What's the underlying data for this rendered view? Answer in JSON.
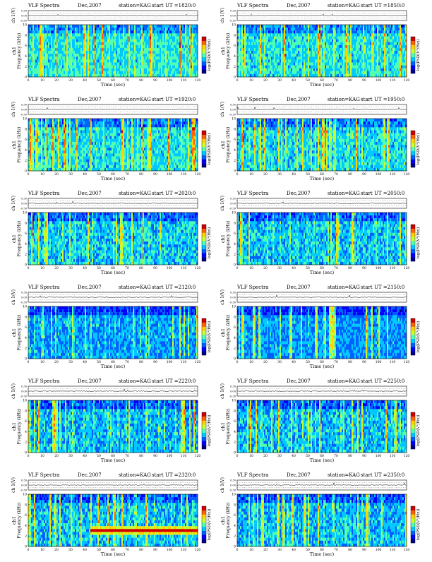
{
  "colors": {
    "colormap": [
      "#00008f",
      "#0000ff",
      "#0060ff",
      "#00c8ff",
      "#50ffb0",
      "#c8ff30",
      "#ffd000",
      "#ff6000",
      "#d00000"
    ],
    "trace": "#000000",
    "dotted_grid": "#555555"
  },
  "chart_data": [
    {
      "type": "heatmap",
      "title": "VLF Spectra",
      "date": "Dec,2007",
      "station": "station=KAG",
      "start": "start  UT  =1820:0",
      "ylabel_top": "ch 1(V)",
      "ylabel": "Frequency  (kHz)",
      "ylabel_prefix": "ch1",
      "xlabel": "Time  (sec)",
      "xlim": [
        0,
        120
      ],
      "ylim": [
        0,
        10
      ],
      "trace_ylim": [
        -0.3,
        0.3
      ],
      "xticks": [
        0,
        10,
        20,
        30,
        40,
        50,
        60,
        70,
        80,
        90,
        100,
        110,
        120
      ],
      "yticks": [
        0,
        2,
        4,
        6,
        8,
        10
      ],
      "trace_ticks": [
        "0.30",
        "0.00",
        "-0.30"
      ],
      "colorbar_label": "log(PSD(V²/Hz))",
      "colorbar_ticks": [
        "",
        ""
      ],
      "intensity": 0.75,
      "band": false
    },
    {
      "type": "heatmap",
      "title": "VLF Spectra",
      "date": "Dec,2007",
      "station": "station=KAG",
      "start": "start  UT  =1850:0",
      "ylabel_top": "ch 1(V)",
      "ylabel": "Frequency  (kHz)",
      "ylabel_prefix": "ch1",
      "xlabel": "Time  (sec)",
      "xlim": [
        0,
        120
      ],
      "ylim": [
        0,
        10
      ],
      "trace_ylim": [
        -0.3,
        0.3
      ],
      "xticks": [
        0,
        10,
        20,
        30,
        40,
        50,
        60,
        70,
        80,
        90,
        100,
        110,
        120
      ],
      "yticks": [
        0,
        2,
        4,
        6,
        8,
        10
      ],
      "trace_ticks": [
        "0.30",
        "0.00",
        "-0.30"
      ],
      "colorbar_label": "log(PSD(V²/Hz))",
      "colorbar_ticks": [
        "",
        ""
      ],
      "intensity": 0.72,
      "band": false
    },
    {
      "type": "heatmap",
      "title": "VLF Spectra",
      "date": "Dec,2007",
      "station": "station=KAG",
      "start": "start  UT  =1920:0",
      "ylabel_top": "ch 1(V)",
      "ylabel": "Frequency  (kHz)",
      "ylabel_prefix": "ch1",
      "xlabel": "Time  (sec)",
      "xlim": [
        0,
        120
      ],
      "ylim": [
        0,
        10
      ],
      "trace_ylim": [
        -0.3,
        0.3
      ],
      "xticks": [
        0,
        10,
        20,
        30,
        40,
        50,
        60,
        70,
        80,
        90,
        100,
        110,
        120
      ],
      "yticks": [
        0,
        2,
        4,
        6,
        8,
        10
      ],
      "trace_ticks": [
        "0.30",
        "0.00",
        "-0.30"
      ],
      "colorbar_label": "log(PSD(V²/Hz))",
      "colorbar_ticks": [
        "",
        ""
      ],
      "intensity": 0.7,
      "band": false
    },
    {
      "type": "heatmap",
      "title": "VLF Spectra",
      "date": "Dec,2007",
      "station": "station=KAG",
      "start": "start  UT  =1950:0",
      "ylabel_top": "ch 1(V)",
      "ylabel": "Frequency  (kHz)",
      "ylabel_prefix": "ch1",
      "xlabel": "Time  (sec)",
      "xlim": [
        0,
        120
      ],
      "ylim": [
        0,
        10
      ],
      "trace_ylim": [
        -0.3,
        0.3
      ],
      "xticks": [
        0,
        10,
        20,
        30,
        40,
        50,
        60,
        70,
        80,
        90,
        100,
        110,
        120
      ],
      "yticks": [
        0,
        2,
        4,
        6,
        8,
        10
      ],
      "trace_ticks": [
        "0.30",
        "0.00",
        "-0.30"
      ],
      "colorbar_label": "log(PSD(V²/Hz))",
      "colorbar_ticks": [
        "",
        ""
      ],
      "intensity": 0.66,
      "band": false
    },
    {
      "type": "heatmap",
      "title": "VLF Spectra",
      "date": "Dec,2007",
      "station": "station=KAG",
      "start": "start  UT  =2020:0",
      "ylabel_top": "ch 1(V)",
      "ylabel": "Frequency  (kHz)",
      "ylabel_prefix": "ch1",
      "xlabel": "Time  (sec)",
      "xlim": [
        0,
        120
      ],
      "ylim": [
        0,
        10
      ],
      "trace_ylim": [
        -0.3,
        0.3
      ],
      "xticks": [
        0,
        10,
        20,
        30,
        40,
        50,
        60,
        70,
        80,
        90,
        100,
        110,
        120
      ],
      "yticks": [
        0,
        2,
        4,
        6,
        8,
        10
      ],
      "trace_ticks": [
        "0.30",
        "0.00",
        "-0.30"
      ],
      "colorbar_label": "log(PSD(V²/Hz))",
      "colorbar_ticks": [
        "",
        ""
      ],
      "intensity": 0.6,
      "band": false
    },
    {
      "type": "heatmap",
      "title": "VLF Spectra",
      "date": "Dec,2007",
      "station": "station=KAG",
      "start": "start  UT  =2050:0",
      "ylabel_top": "ch 1(V)",
      "ylabel": "Frequency  (kHz)",
      "ylabel_prefix": "ch1",
      "xlabel": "Time  (sec)",
      "xlim": [
        0,
        120
      ],
      "ylim": [
        0,
        10
      ],
      "trace_ylim": [
        -0.3,
        0.3
      ],
      "xticks": [
        0,
        10,
        20,
        30,
        40,
        50,
        60,
        70,
        80,
        90,
        100,
        110,
        120
      ],
      "yticks": [
        0,
        2,
        4,
        6,
        8,
        10
      ],
      "trace_ticks": [
        "0.30",
        "0.00",
        "-0.30"
      ],
      "colorbar_label": "log(PSD(V²/Hz))",
      "colorbar_ticks": [
        "",
        ""
      ],
      "intensity": 0.56,
      "band": false
    },
    {
      "type": "heatmap",
      "title": "VLF Spectra",
      "date": "Dec,2007",
      "station": "station=KAG",
      "start": "start  UT  =2120:0",
      "ylabel_top": "ch 1(V)",
      "ylabel": "Frequency  (kHz)",
      "ylabel_prefix": "ch1",
      "xlabel": "Time  (sec)",
      "xlim": [
        0,
        120
      ],
      "ylim": [
        0,
        10
      ],
      "trace_ylim": [
        -0.3,
        0.3
      ],
      "xticks": [
        0,
        10,
        20,
        30,
        40,
        50,
        60,
        70,
        80,
        90,
        100,
        110,
        120
      ],
      "yticks": [
        0,
        2,
        4,
        6,
        8,
        10
      ],
      "trace_ticks": [
        "0.30",
        "0.00",
        "-0.30"
      ],
      "colorbar_label": "log(PSD(V²/Hz))",
      "colorbar_ticks": [
        "",
        ""
      ],
      "intensity": 0.4,
      "band": false
    },
    {
      "type": "heatmap",
      "title": "VLF Spectra",
      "date": "Dec,2007",
      "station": "station=KAG",
      "start": "start  UT  =2150:0",
      "ylabel_top": "ch 1(V)",
      "ylabel": "Frequency  (kHz)",
      "ylabel_prefix": "ch1",
      "xlabel": "Time  (sec)",
      "xlim": [
        0,
        120
      ],
      "ylim": [
        0,
        10
      ],
      "trace_ylim": [
        -0.3,
        0.3
      ],
      "xticks": [
        0,
        10,
        20,
        30,
        40,
        50,
        60,
        70,
        80,
        90,
        100,
        110,
        120
      ],
      "yticks": [
        0,
        2,
        4,
        6,
        8,
        10
      ],
      "trace_ticks": [
        "0.30",
        "0.00",
        "-0.30"
      ],
      "colorbar_label": "log(PSD(V²/Hz))",
      "colorbar_ticks": [
        "",
        ""
      ],
      "intensity": 0.38,
      "band": false
    },
    {
      "type": "heatmap",
      "title": "VLF Spectra",
      "date": "Dec,2007",
      "station": "station=KAG",
      "start": "start  UT  =2220:0",
      "ylabel_top": "ch 1(V)",
      "ylabel": "Frequency  (kHz)",
      "ylabel_prefix": "ch1",
      "xlabel": "Time  (sec)",
      "xlim": [
        0,
        120
      ],
      "ylim": [
        0,
        10
      ],
      "trace_ylim": [
        -0.3,
        0.3
      ],
      "xticks": [
        0,
        10,
        20,
        30,
        40,
        50,
        60,
        70,
        80,
        90,
        100,
        110,
        120
      ],
      "yticks": [
        0,
        2,
        4,
        6,
        8,
        10
      ],
      "trace_ticks": [
        "0.30",
        "0.00",
        "-0.30"
      ],
      "colorbar_label": "log(PSD(V²/Hz))",
      "colorbar_ticks": [
        "",
        ""
      ],
      "intensity": 0.5,
      "band": false
    },
    {
      "type": "heatmap",
      "title": "VLF Spectra",
      "date": "Dec,2007",
      "station": "station=KAG",
      "start": "start  UT  =2250:0",
      "ylabel_top": "ch 1(V)",
      "ylabel": "Frequency  (kHz)",
      "ylabel_prefix": "ch1",
      "xlabel": "Time  (sec)",
      "xlim": [
        0,
        120
      ],
      "ylim": [
        0,
        10
      ],
      "trace_ylim": [
        -0.3,
        0.3
      ],
      "xticks": [
        0,
        10,
        20,
        30,
        40,
        50,
        60,
        70,
        80,
        90,
        100,
        110,
        120
      ],
      "yticks": [
        0,
        2,
        4,
        6,
        8,
        10
      ],
      "trace_ticks": [
        "0.30",
        "0.00",
        "-0.30"
      ],
      "colorbar_label": "log(PSD(V²/Hz))",
      "colorbar_ticks": [
        "",
        ""
      ],
      "intensity": 0.55,
      "band": false
    },
    {
      "type": "heatmap",
      "title": "VLF Spectra",
      "date": "Dec,2007",
      "station": "station=KAG",
      "start": "start  UT  =2320:0",
      "ylabel_top": "ch 1(V)",
      "ylabel": "Frequency  (kHz)",
      "ylabel_prefix": "ch1",
      "xlabel": "Time  (sec)",
      "xlim": [
        0,
        120
      ],
      "ylim": [
        0,
        10
      ],
      "trace_ylim": [
        -0.3,
        0.3
      ],
      "xticks": [
        0,
        10,
        20,
        30,
        40,
        50,
        60,
        70,
        80,
        90,
        100,
        110,
        120
      ],
      "yticks": [
        0,
        2,
        4,
        6,
        8,
        10
      ],
      "trace_ticks": [
        "0.30",
        "0.00",
        "-0.30"
      ],
      "colorbar_label": "log(PSD(V²/Hz))",
      "colorbar_ticks": [
        "",
        ""
      ],
      "intensity": 0.55,
      "band": true
    },
    {
      "type": "heatmap",
      "title": "VLF Spectra",
      "date": "Dec,2007",
      "station": "station=KAG",
      "start": "start  UT  =2350:0",
      "ylabel_top": "ch 1(V)",
      "ylabel": "Frequency  (kHz)",
      "ylabel_prefix": "ch1",
      "xlabel": "Time  (sec)",
      "xlim": [
        0,
        120
      ],
      "ylim": [
        0,
        10
      ],
      "trace_ylim": [
        -0.3,
        0.3
      ],
      "xticks": [
        0,
        10,
        20,
        30,
        40,
        50,
        60,
        70,
        80,
        90,
        100,
        110,
        120
      ],
      "yticks": [
        0,
        2,
        4,
        6,
        8,
        10
      ],
      "trace_ticks": [
        "0.30",
        "0.00",
        "-0.30"
      ],
      "colorbar_label": "log(PSD(V²/Hz))",
      "colorbar_ticks": [
        "",
        ""
      ],
      "intensity": 0.5,
      "band": false
    }
  ]
}
